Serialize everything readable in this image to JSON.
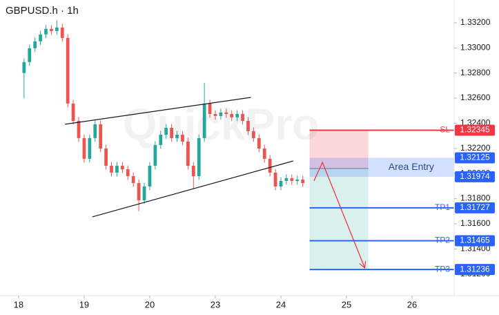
{
  "chart_data": {
    "type": "candlestick",
    "title": "GBPUSD.h · 1h",
    "watermark": "QuickPro",
    "up_color": "#26a69a",
    "down_color": "#ef5350",
    "x": [
      2,
      4,
      6,
      8,
      10,
      12,
      14,
      16,
      18,
      20,
      22,
      24,
      26,
      28,
      30,
      32,
      34,
      36,
      38,
      40,
      42,
      44,
      46,
      48,
      50,
      52,
      54,
      56,
      58,
      60,
      62,
      64,
      66,
      68,
      70,
      72,
      74,
      76,
      78,
      80,
      82,
      84,
      86,
      88,
      90,
      92,
      94,
      96,
      98,
      100,
      102,
      104
    ],
    "open": [
      1.328,
      1.32887,
      1.32997,
      1.33052,
      1.33107,
      1.33151,
      1.33134,
      1.33162,
      1.33079,
      1.32557,
      1.32419,
      1.32282,
      1.32117,
      1.32282,
      1.32392,
      1.32199,
      1.32062,
      1.32007,
      1.32062,
      1.32034,
      1.31979,
      1.31924,
      1.31787,
      1.31897,
      1.32062,
      1.32227,
      1.32309,
      1.32364,
      1.32282,
      1.32309,
      1.32254,
      1.32062,
      1.31979,
      1.32282,
      1.32557,
      1.32474,
      1.32458,
      1.32486,
      1.32474,
      1.32447,
      1.32474,
      1.32419,
      1.32337,
      1.32282,
      1.32199,
      1.32117,
      1.32007,
      1.31897,
      1.31941,
      1.31963,
      1.31941,
      1.31952
    ],
    "high": [
      1.32917,
      1.33027,
      1.33082,
      1.33137,
      1.33181,
      1.33181,
      1.3322,
      1.33192,
      1.33109,
      1.32587,
      1.32449,
      1.32312,
      1.32312,
      1.32422,
      1.32422,
      1.32229,
      1.32092,
      1.32092,
      1.32092,
      1.32064,
      1.32009,
      1.31954,
      1.31927,
      1.32092,
      1.32257,
      1.32339,
      1.32394,
      1.32394,
      1.32339,
      1.32339,
      1.32284,
      1.32092,
      1.32312,
      1.3272,
      1.32587,
      1.32504,
      1.32516,
      1.32516,
      1.32504,
      1.32504,
      1.32504,
      1.32449,
      1.32367,
      1.32312,
      1.32229,
      1.32147,
      1.32037,
      1.31971,
      1.31993,
      1.31993,
      1.31982,
      1.31982
    ],
    "low": [
      1.326,
      1.32857,
      1.32967,
      1.33022,
      1.33077,
      1.33104,
      1.33104,
      1.33049,
      1.32527,
      1.32389,
      1.32252,
      1.32087,
      1.32087,
      1.32252,
      1.32169,
      1.32032,
      1.31977,
      1.31977,
      1.32004,
      1.31949,
      1.31894,
      1.317,
      1.31757,
      1.31867,
      1.32032,
      1.32197,
      1.32279,
      1.32252,
      1.32252,
      1.32224,
      1.32032,
      1.3188,
      1.31949,
      1.32252,
      1.32444,
      1.32428,
      1.32428,
      1.32444,
      1.32417,
      1.32417,
      1.32389,
      1.32307,
      1.32252,
      1.32169,
      1.32087,
      1.31977,
      1.31867,
      1.31867,
      1.31911,
      1.31911,
      1.31911,
      1.31894
    ],
    "close": [
      1.32887,
      1.32997,
      1.33052,
      1.33107,
      1.33151,
      1.33134,
      1.33162,
      1.33079,
      1.32557,
      1.32419,
      1.32282,
      1.32117,
      1.32282,
      1.32392,
      1.32199,
      1.32062,
      1.32007,
      1.32062,
      1.32034,
      1.31979,
      1.31924,
      1.31787,
      1.31897,
      1.32062,
      1.32227,
      1.32309,
      1.32364,
      1.32282,
      1.32309,
      1.32254,
      1.32062,
      1.31979,
      1.32282,
      1.32557,
      1.32474,
      1.32458,
      1.32486,
      1.32474,
      1.32447,
      1.32474,
      1.32419,
      1.32337,
      1.32282,
      1.32199,
      1.32117,
      1.32007,
      1.31897,
      1.31941,
      1.31963,
      1.31941,
      1.31952,
      1.31924
    ],
    "xlim": [
      -6.8,
      159.4
    ],
    "xticks": [
      {
        "value": 0,
        "label": "18"
      },
      {
        "value": 24,
        "label": "19"
      },
      {
        "value": 48,
        "label": "20"
      },
      {
        "value": 72,
        "label": "23"
      },
      {
        "value": 96,
        "label": "24"
      },
      {
        "value": 120,
        "label": "25"
      },
      {
        "value": 144,
        "label": "26"
      }
    ],
    "ylim": [
      1.31028,
      1.33381
    ],
    "yticks": [
      {
        "value": 1.332,
        "label": "1.33200"
      },
      {
        "value": 1.33,
        "label": "1.33000"
      },
      {
        "value": 1.328,
        "label": "1.32800"
      },
      {
        "value": 1.326,
        "label": "1.32600"
      },
      {
        "value": 1.324,
        "label": "1.32400"
      },
      {
        "value": 1.322,
        "label": "1.32200"
      },
      {
        "value": 1.32,
        "label": "1.32000"
      },
      {
        "value": 1.318,
        "label": "1.31800"
      },
      {
        "value": 1.316,
        "label": "1.31600"
      },
      {
        "value": 1.314,
        "label": "1.31400"
      },
      {
        "value": 1.312,
        "label": "1.31200"
      }
    ],
    "trendlines": [
      {
        "x": [
          17,
          85
        ],
        "y": [
          1.32392,
          1.32606
        ]
      },
      {
        "x": [
          27,
          100.5
        ],
        "y": [
          1.31655,
          1.321
        ]
      }
    ],
    "position": {
      "x": [
        106.5,
        128
      ],
      "entry": 1.3204,
      "entry_zone": [
        1.32125,
        1.31974
      ],
      "zone_label": "Area Entry",
      "zone_color": "#2962ff",
      "arrow": {
        "x": [
          108.1,
          111.2,
          126.6
        ],
        "y": [
          1.31941,
          1.32089,
          1.31254
        ],
        "color": "#f23645"
      },
      "levels": [
        {
          "name": "SL",
          "value": 1.32345,
          "color": "#f23645"
        },
        {
          "name": "TP1",
          "value": 1.31727,
          "color": "#2962ff"
        },
        {
          "name": "TP2",
          "value": 1.31465,
          "color": "#2962ff"
        },
        {
          "name": "TP3",
          "value": 1.31236,
          "color": "#2962ff"
        }
      ]
    }
  }
}
